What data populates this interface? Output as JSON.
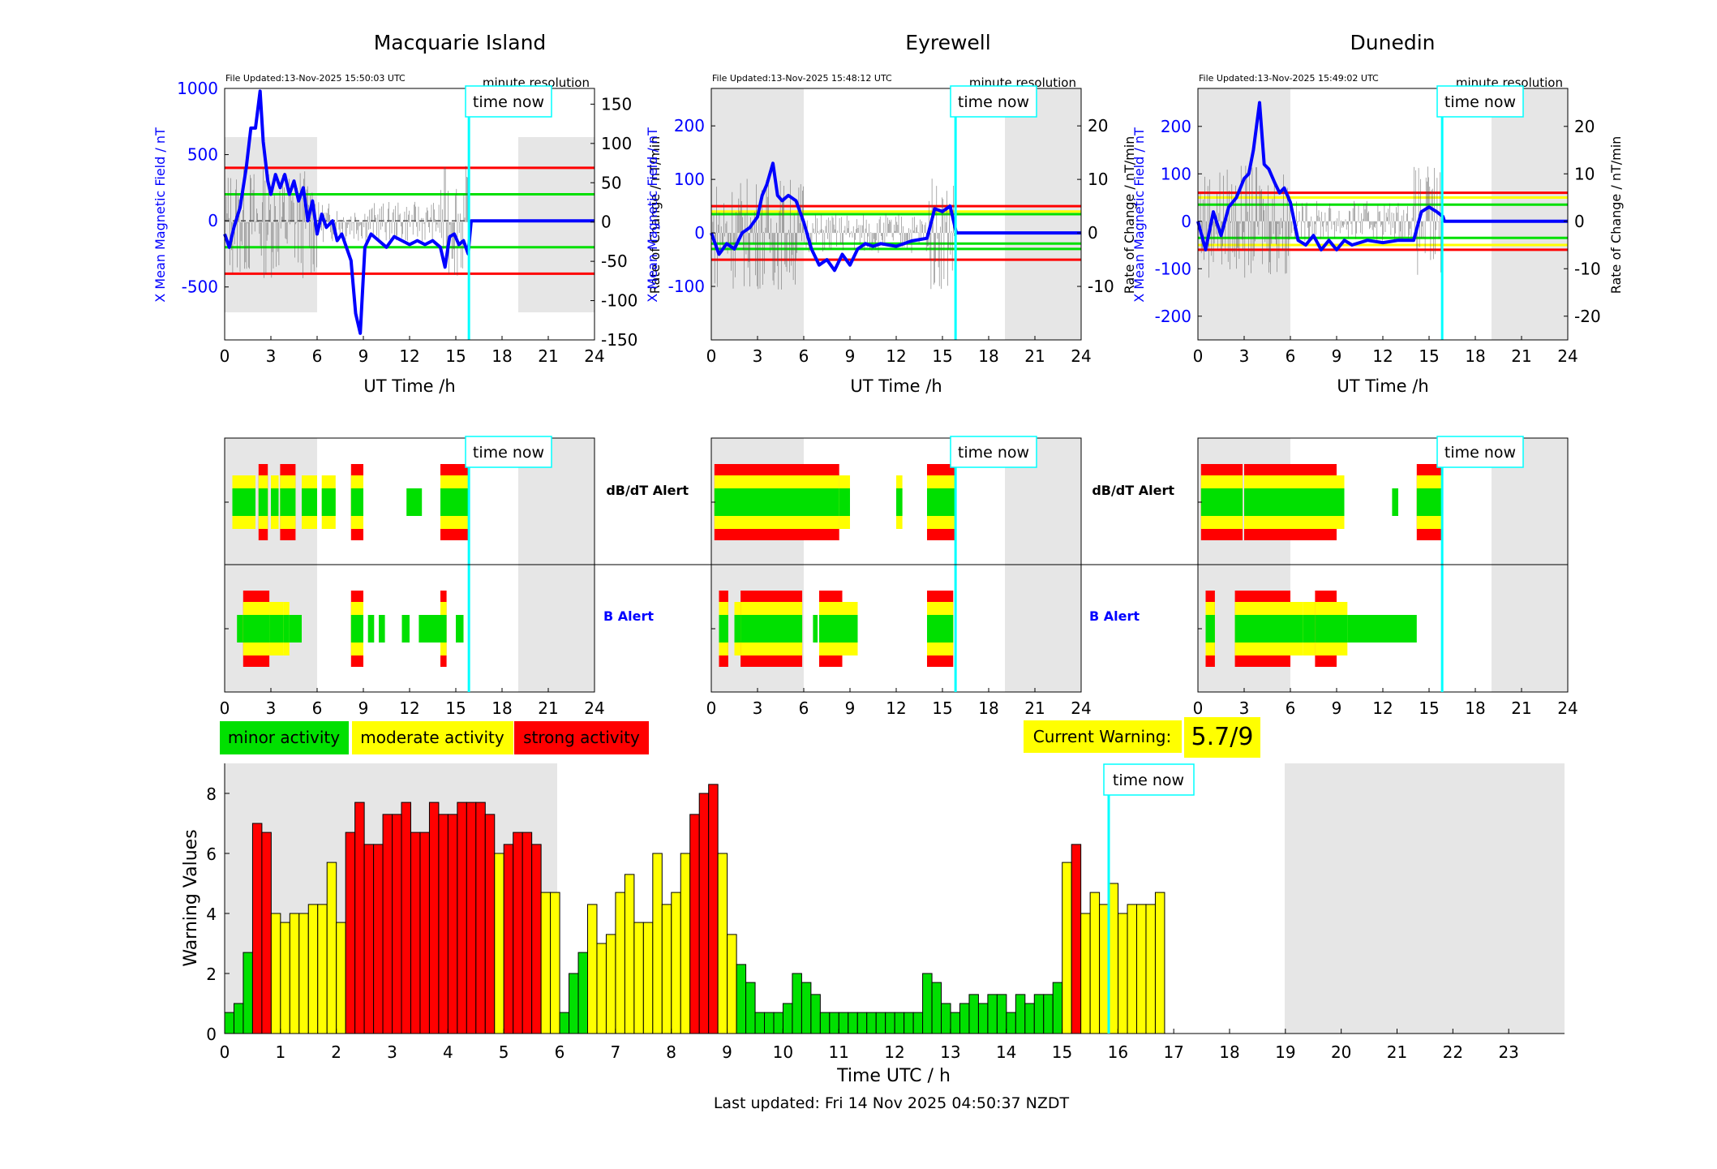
{
  "stations": [
    {
      "title": "Macquarie Island",
      "file_updated": "File Updated:13-Nov-2025 15:50:03 UTC",
      "resolution": "minute resolution",
      "ylabel_left": "X Mean Magnetic Field / nT",
      "ylabel_right": "Rate of Change / nT/min",
      "xlabel": "UT Time /h",
      "time_now_label": "time now",
      "left_ticks": [
        -500,
        0,
        500,
        1000
      ],
      "right_ticks": [
        -150,
        -100,
        -50,
        0,
        50,
        100,
        150
      ]
    },
    {
      "title": "Eyrewell",
      "file_updated": "File Updated:13-Nov-2025 15:48:12 UTC",
      "resolution": "minute resolution",
      "ylabel_left": "X Mean Magnetic Field / nT",
      "ylabel_right": "Rate of Change / nT/min",
      "xlabel": "UT Time /h",
      "time_now_label": "time now",
      "left_ticks": [
        -100,
        0,
        100,
        200
      ],
      "right_ticks": [
        -10,
        0,
        10,
        20
      ]
    },
    {
      "title": "Dunedin",
      "file_updated": "File Updated:13-Nov-2025 15:49:02 UTC",
      "resolution": "minute resolution",
      "ylabel_left": "X Mean Magnetic Field / nT",
      "ylabel_right": "Rate of Change / nT/min",
      "xlabel": "UT Time /h",
      "time_now_label": "time now",
      "left_ticks": [
        -200,
        -100,
        0,
        100,
        200
      ],
      "right_ticks": [
        -20,
        -10,
        0,
        10,
        20
      ]
    }
  ],
  "alerts": {
    "dbdt_label": "dB/dT Alert",
    "b_label": "B Alert",
    "time_now_label": "time now"
  },
  "legend": {
    "minor": "minor activity",
    "moderate": "moderate activity",
    "strong": "strong activity"
  },
  "current_warning": {
    "label": "Current Warning:",
    "value": "5.7/9"
  },
  "footer": {
    "last_updated": "Last updated: Fri 14 Nov 2025 04:50:37 NZDT"
  },
  "colors": {
    "minor": "#00e000",
    "moderate": "#ffff00",
    "strong": "#ff0000",
    "field_line": "#0000ff",
    "time_now": "#00ffff",
    "shade": "#e6e6e6"
  },
  "chart_data": [
    {
      "id": "macquarie-field",
      "type": "line",
      "title": "Macquarie Island",
      "xlabel": "UT Time /h",
      "ylabel": "X Mean Magnetic Field / nT",
      "y2label": "Rate of Change / nT/min",
      "xlim": [
        0,
        24
      ],
      "ylim": [
        -900,
        1000
      ],
      "y2lim": [
        -150,
        170
      ],
      "xticks": [
        0,
        3,
        6,
        9,
        12,
        15,
        18,
        21,
        24
      ],
      "threshold_lines": [
        400,
        200,
        0,
        -200,
        -400
      ],
      "series": [
        {
          "x": [
            0,
            0.3,
            0.6,
            1.0,
            1.4,
            1.7,
            2.0,
            2.3,
            2.5,
            2.8,
            3.0,
            3.3,
            3.6,
            3.9,
            4.2,
            4.5,
            4.8,
            5.1,
            5.4,
            5.7,
            6.0,
            6.3,
            6.6,
            7.0,
            7.3,
            7.6,
            7.9,
            8.2,
            8.5,
            8.8,
            9.1,
            9.5,
            10,
            10.5,
            11,
            11.5,
            12,
            12.5,
            13,
            13.5,
            14,
            14.3,
            14.6,
            14.9,
            15.2,
            15.5,
            15.8,
            16,
            24
          ],
          "y": [
            -100,
            -200,
            -50,
            100,
            400,
            700,
            700,
            980,
            600,
            300,
            200,
            350,
            250,
            350,
            200,
            300,
            150,
            250,
            0,
            150,
            -100,
            50,
            -50,
            0,
            -150,
            -100,
            -200,
            -300,
            -700,
            -850,
            -200,
            -100,
            -150,
            -200,
            -120,
            -150,
            -180,
            -150,
            -180,
            -150,
            -200,
            -350,
            -120,
            -100,
            -180,
            -150,
            -250,
            0,
            0
          ]
        }
      ]
    },
    {
      "id": "eyrewell-field",
      "type": "line",
      "title": "Eyrewell",
      "xlabel": "UT Time /h",
      "ylabel": "X Mean Magnetic Field / nT",
      "y2label": "Rate of Change / nT/min",
      "xlim": [
        0,
        24
      ],
      "ylim": [
        -200,
        270
      ],
      "y2lim": [
        -20,
        27
      ],
      "xticks": [
        0,
        3,
        6,
        9,
        12,
        15,
        18,
        21,
        24
      ],
      "threshold_lines": [
        50,
        40,
        35,
        -20,
        -30,
        -50
      ],
      "series": [
        {
          "x": [
            0,
            0.5,
            1.0,
            1.5,
            2.0,
            2.5,
            3.0,
            3.3,
            3.6,
            4.0,
            4.3,
            4.6,
            5.0,
            5.5,
            6.0,
            6.5,
            7.0,
            7.5,
            8.0,
            8.5,
            9.0,
            9.5,
            10,
            10.5,
            11,
            12,
            13,
            14,
            14.5,
            15,
            15.5,
            15.9,
            16,
            24
          ],
          "y": [
            0,
            -40,
            -20,
            -30,
            0,
            10,
            30,
            70,
            90,
            130,
            70,
            60,
            70,
            60,
            20,
            -30,
            -60,
            -50,
            -70,
            -40,
            -60,
            -30,
            -20,
            -25,
            -20,
            -25,
            -15,
            -10,
            45,
            40,
            50,
            0,
            0,
            0
          ]
        }
      ]
    },
    {
      "id": "dunedin-field",
      "type": "line",
      "title": "Dunedin",
      "xlabel": "UT Time /h",
      "ylabel": "X Mean Magnetic Field / nT",
      "y2label": "Rate of Change / nT/min",
      "xlim": [
        0,
        24
      ],
      "ylim": [
        -250,
        280
      ],
      "y2lim": [
        -25,
        28
      ],
      "xticks": [
        0,
        3,
        6,
        9,
        12,
        15,
        18,
        21,
        24
      ],
      "threshold_lines": [
        60,
        50,
        35,
        -35,
        -50,
        -60
      ],
      "series": [
        {
          "x": [
            0,
            0.5,
            1.0,
            1.5,
            2.0,
            2.5,
            3.0,
            3.3,
            3.6,
            4.0,
            4.3,
            4.6,
            5.0,
            5.3,
            5.6,
            6.0,
            6.5,
            7.0,
            7.5,
            8.0,
            8.5,
            9.0,
            9.5,
            10,
            11,
            12,
            13,
            14,
            14.5,
            15,
            15.5,
            15.9,
            16,
            24
          ],
          "y": [
            0,
            -60,
            20,
            -30,
            30,
            50,
            90,
            100,
            150,
            250,
            120,
            110,
            80,
            60,
            70,
            40,
            -40,
            -50,
            -30,
            -60,
            -40,
            -60,
            -40,
            -50,
            -40,
            -45,
            -40,
            -40,
            20,
            30,
            20,
            10,
            0,
            0
          ]
        }
      ]
    },
    {
      "id": "alert-bands",
      "type": "bar",
      "xlabel": "",
      "xlim": [
        0,
        24
      ],
      "xticks": [
        0,
        3,
        6,
        9,
        12,
        15,
        18,
        21,
        24
      ],
      "panels": [
        {
          "station": "Macquarie Island",
          "dbdt": [
            [
              0.5,
              2.0,
              2
            ],
            [
              2.2,
              2.8,
              3
            ],
            [
              3.0,
              3.5,
              2
            ],
            [
              3.6,
              4.6,
              3
            ],
            [
              5.0,
              6.0,
              2
            ],
            [
              6.3,
              7.2,
              2
            ],
            [
              8.2,
              9.0,
              3
            ],
            [
              11.8,
              12.8,
              1
            ],
            [
              14.0,
              15.8,
              3
            ]
          ],
          "b": [
            [
              0.8,
              1.2,
              1
            ],
            [
              1.2,
              2.9,
              3
            ],
            [
              2.9,
              3.8,
              2
            ],
            [
              3.8,
              4.2,
              2
            ],
            [
              4.2,
              5.0,
              1
            ],
            [
              8.2,
              9.0,
              3
            ],
            [
              9.3,
              9.7,
              1
            ],
            [
              10.0,
              10.4,
              1
            ],
            [
              11.5,
              12.0,
              1
            ],
            [
              12.6,
              14.0,
              1
            ],
            [
              14.0,
              14.4,
              3
            ],
            [
              15.0,
              15.5,
              1
            ]
          ]
        },
        {
          "station": "Eyrewell",
          "dbdt": [
            [
              0.2,
              6.0,
              3
            ],
            [
              6.0,
              8.3,
              3
            ],
            [
              8.3,
              9.0,
              2
            ],
            [
              12.0,
              12.4,
              2
            ],
            [
              14.0,
              15.8,
              3
            ]
          ],
          "b": [
            [
              0.5,
              1.1,
              3
            ],
            [
              1.5,
              1.9,
              2
            ],
            [
              1.9,
              2.5,
              3
            ],
            [
              2.5,
              4.5,
              3
            ],
            [
              4.5,
              5.9,
              3
            ],
            [
              6.6,
              6.9,
              1
            ],
            [
              7.0,
              8.5,
              3
            ],
            [
              8.5,
              9.5,
              2
            ],
            [
              14.0,
              15.7,
              3
            ]
          ]
        },
        {
          "station": "Dunedin",
          "dbdt": [
            [
              0.2,
              2.9,
              3
            ],
            [
              3.0,
              4.5,
              3
            ],
            [
              4.5,
              6.0,
              3
            ],
            [
              6.0,
              7.5,
              3
            ],
            [
              7.5,
              8.0,
              3
            ],
            [
              8.0,
              9.0,
              3
            ],
            [
              9.0,
              9.5,
              2
            ],
            [
              12.6,
              13.0,
              1
            ],
            [
              14.2,
              15.9,
              3
            ]
          ],
          "b": [
            [
              0.5,
              1.1,
              3
            ],
            [
              2.4,
              6.0,
              3
            ],
            [
              6.0,
              6.8,
              2
            ],
            [
              6.8,
              7.6,
              2
            ],
            [
              7.6,
              8.5,
              3
            ],
            [
              8.5,
              9.0,
              3
            ],
            [
              9.0,
              9.7,
              2
            ],
            [
              9.7,
              14.2,
              1
            ]
          ]
        }
      ]
    },
    {
      "id": "warning-values",
      "type": "bar",
      "xlabel": "Time UTC / h",
      "ylabel": "Warning Values",
      "xlim": [
        0,
        24
      ],
      "ylim": [
        0,
        9
      ],
      "xticks": [
        0,
        1,
        2,
        3,
        4,
        5,
        6,
        7,
        8,
        9,
        10,
        11,
        12,
        13,
        14,
        15,
        16,
        17,
        18,
        19,
        20,
        21,
        22,
        23
      ],
      "yticks": [
        0,
        2,
        4,
        6,
        8
      ],
      "bin_hours": 0.1667,
      "values": [
        0.7,
        1.0,
        2.7,
        7.0,
        6.7,
        4.0,
        3.7,
        4.0,
        4.0,
        4.3,
        4.3,
        5.7,
        3.7,
        6.7,
        7.7,
        6.3,
        6.3,
        7.3,
        7.3,
        7.7,
        6.7,
        6.7,
        7.7,
        7.3,
        7.3,
        7.7,
        7.7,
        7.7,
        7.3,
        6.0,
        6.3,
        6.7,
        6.7,
        6.3,
        4.7,
        4.7,
        0.7,
        2.0,
        2.7,
        4.3,
        3.0,
        3.3,
        4.7,
        5.3,
        3.7,
        3.7,
        6.0,
        4.3,
        4.7,
        6.0,
        7.3,
        8.0,
        8.3,
        6.0,
        3.3,
        2.3,
        1.7,
        0.7,
        0.7,
        0.7,
        1.0,
        2.0,
        1.7,
        1.3,
        0.7,
        0.7,
        0.7,
        0.7,
        0.7,
        0.7,
        0.7,
        0.7,
        0.7,
        0.7,
        0.7,
        2.0,
        1.7,
        1.0,
        0.7,
        1.0,
        1.3,
        1.0,
        1.3,
        1.3,
        0.7,
        1.3,
        1.0,
        1.3,
        1.3,
        1.7,
        5.7,
        6.3,
        4.0,
        4.7,
        4.3,
        5.0,
        4.0,
        4.3,
        4.3,
        4.3,
        4.7
      ]
    }
  ]
}
